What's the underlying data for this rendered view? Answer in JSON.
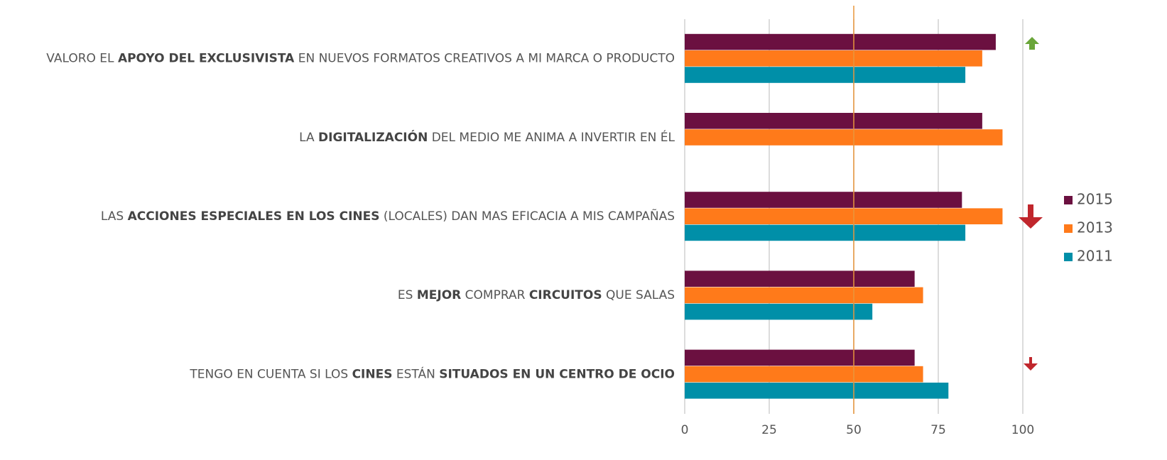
{
  "chart_data": {
    "type": "bar",
    "orientation": "horizontal",
    "categories": [
      [
        "VALORO EL ",
        "APOYO DEL EXCLUSIVISTA",
        " EN NUEVOS FORMATOS CREATIVOS A MI MARCA O PRODUCTO"
      ],
      [
        "LA ",
        "DIGITALIZACIÓN",
        " DEL MEDIO ME ANIMA A INVERTIR EN ÉL"
      ],
      [
        "LAS ",
        "ACCIONES ESPECIALES EN LOS CINES",
        " (LOCALES) DAN MAS EFICACIA A MIS CAMPAÑAS"
      ],
      [
        "ES ",
        "MEJOR",
        " COMPRAR ",
        "CIRCUITOS",
        " QUE SALAS"
      ],
      [
        "TENGO EN CUENTA SI LOS ",
        "CINES",
        " ESTÁN ",
        "SITUADOS EN UN CENTRO DE OCIO"
      ]
    ],
    "series": [
      {
        "name": "2015",
        "color": "#6b1040",
        "values": [
          92,
          88,
          82,
          68,
          68
        ]
      },
      {
        "name": "2013",
        "color": "#ff7a1a",
        "values": [
          88,
          94,
          94,
          70.5,
          70.5
        ]
      },
      {
        "name": "2011",
        "color": "#008fa8",
        "values": [
          83,
          null,
          83,
          55.5,
          78
        ]
      }
    ],
    "xlim": [
      0,
      100
    ],
    "xticks": [
      0,
      25,
      50,
      75,
      100
    ],
    "grid": true,
    "reference_line": 50,
    "reference_color": "#e8963c",
    "legend": "right"
  }
}
